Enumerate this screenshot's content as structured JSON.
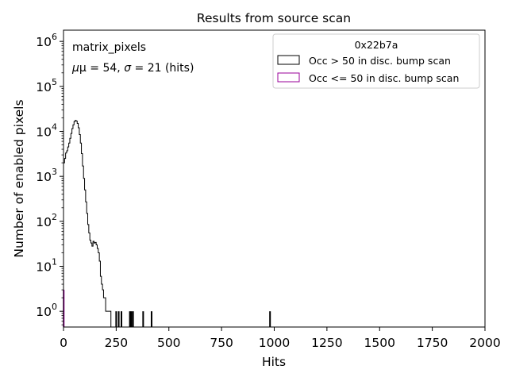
{
  "chart_data": {
    "type": "histogram",
    "title": "Results from source scan",
    "xlabel": "Hits",
    "ylabel": "Number of enabled pixels",
    "xlim": [
      0,
      2000
    ],
    "ylim_log10": [
      -0.35,
      6.25
    ],
    "yscale": "log",
    "x_ticks": [
      0,
      250,
      500,
      750,
      1000,
      1250,
      1500,
      1750,
      2000
    ],
    "x_tick_labels": [
      "0",
      "250",
      "500",
      "750",
      "1000",
      "1250",
      "1500",
      "1750",
      "2000"
    ],
    "y_ticks": [
      {
        "exp": 0,
        "base": "10",
        "sup": "0"
      },
      {
        "exp": 1,
        "base": "10",
        "sup": "1"
      },
      {
        "exp": 2,
        "base": "10",
        "sup": "2"
      },
      {
        "exp": 3,
        "base": "10",
        "sup": "3"
      },
      {
        "exp": 4,
        "base": "10",
        "sup": "4"
      },
      {
        "exp": 5,
        "base": "10",
        "sup": "5"
      },
      {
        "exp": 6,
        "base": "10",
        "sup": "6"
      }
    ],
    "annotation": {
      "name": "matrix_pixels",
      "stats_mu_label": "μ = 54, ",
      "stats_sigma_label": "σ",
      "stats_rest_label": " = 21 (hits)"
    },
    "legend": {
      "title": "0x22b7a",
      "position": "top-right",
      "entries": [
        {
          "label": "Occ > 50 in disc. bump scan",
          "color": "#000000"
        },
        {
          "label": "Occ <= 50 in disc. bump scan",
          "color": "#990099"
        }
      ]
    },
    "series": [
      {
        "name": "Occ > 50 in disc. bump scan",
        "color": "#000000",
        "step": [
          [
            0,
            2000
          ],
          [
            5,
            2500
          ],
          [
            10,
            3300
          ],
          [
            15,
            3700
          ],
          [
            20,
            4500
          ],
          [
            25,
            5500
          ],
          [
            30,
            7000
          ],
          [
            35,
            9000
          ],
          [
            40,
            11500
          ],
          [
            45,
            14000
          ],
          [
            50,
            16500
          ],
          [
            55,
            17500
          ],
          [
            60,
            17000
          ],
          [
            65,
            15000
          ],
          [
            70,
            12000
          ],
          [
            75,
            8500
          ],
          [
            80,
            5500
          ],
          [
            85,
            3200
          ],
          [
            90,
            1700
          ],
          [
            95,
            900
          ],
          [
            100,
            500
          ],
          [
            105,
            270
          ],
          [
            110,
            150
          ],
          [
            115,
            85
          ],
          [
            120,
            55
          ],
          [
            125,
            38
          ],
          [
            130,
            33
          ],
          [
            135,
            28
          ],
          [
            140,
            36
          ],
          [
            145,
            33
          ],
          [
            150,
            34
          ],
          [
            155,
            30
          ],
          [
            160,
            25
          ],
          [
            165,
            20
          ],
          [
            170,
            13
          ],
          [
            175,
            6
          ],
          [
            180,
            4
          ],
          [
            185,
            3
          ],
          [
            190,
            2
          ],
          [
            200,
            1
          ],
          [
            225,
            0
          ]
        ],
        "spikes": [
          {
            "x": 250,
            "count": 1
          },
          {
            "x": 262,
            "count": 1
          },
          {
            "x": 275,
            "count": 1
          },
          {
            "x": 315,
            "count": 1
          },
          {
            "x": 322,
            "count": 1
          },
          {
            "x": 330,
            "count": 1
          },
          {
            "x": 378,
            "count": 1
          },
          {
            "x": 418,
            "count": 1
          },
          {
            "x": 980,
            "count": 1
          }
        ]
      },
      {
        "name": "Occ <= 50 in disc. bump scan",
        "color": "#990099",
        "spikes": [
          {
            "x": 1,
            "count": 3
          }
        ]
      }
    ]
  }
}
